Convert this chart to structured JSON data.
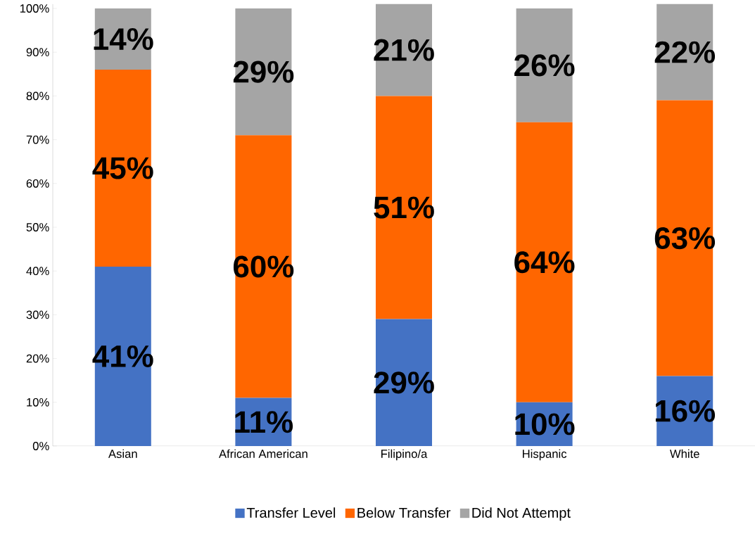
{
  "chart_data": {
    "type": "bar",
    "stacked": true,
    "categories": [
      "Asian",
      "African American",
      "Filipino/a",
      "Hispanic",
      "White"
    ],
    "series": [
      {
        "name": "Transfer Level",
        "color": "#4472c4",
        "values": [
          41,
          11,
          29,
          10,
          16
        ],
        "value_labels": [
          "41%",
          "11%",
          "29%",
          "10%",
          "16%"
        ]
      },
      {
        "name": "Below Transfer",
        "color": "#ff6600",
        "values": [
          45,
          60,
          51,
          64,
          63
        ],
        "value_labels": [
          "45%",
          "60%",
          "51%",
          "64%",
          "63%"
        ]
      },
      {
        "name": "Did Not Attempt",
        "color": "#a5a5a5",
        "values": [
          14,
          29,
          21,
          26,
          22
        ],
        "value_labels": [
          "14%",
          "29%",
          "21%",
          "26%",
          "22%"
        ]
      }
    ],
    "ylim": [
      0,
      101
    ],
    "yticks": [
      {
        "value": 0,
        "label": "0%"
      },
      {
        "value": 10,
        "label": "10%"
      },
      {
        "value": 20,
        "label": "20%"
      },
      {
        "value": 30,
        "label": "30%"
      },
      {
        "value": 40,
        "label": "40%"
      },
      {
        "value": 50,
        "label": "50%"
      },
      {
        "value": 60,
        "label": "60%"
      },
      {
        "value": 70,
        "label": "70%"
      },
      {
        "value": 80,
        "label": "80%"
      },
      {
        "value": 90,
        "label": "90%"
      },
      {
        "value": 100,
        "label": "100%"
      }
    ],
    "legend": "bottom"
  }
}
